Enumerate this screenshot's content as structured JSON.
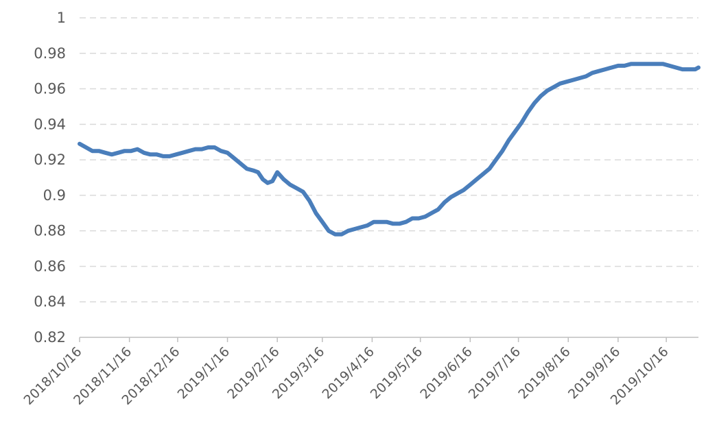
{
  "chart_data": {
    "type": "line",
    "title": "",
    "xlabel": "",
    "ylabel": "",
    "ylim": [
      0.82,
      1
    ],
    "y_ticks": [
      "0.82",
      "0.84",
      "0.86",
      "0.88",
      "0.9",
      "0.92",
      "0.94",
      "0.96",
      "0.98",
      "1"
    ],
    "x_ticks": [
      "2018/10/16",
      "2018/11/16",
      "2018/12/16",
      "2019/1/16",
      "2019/2/16",
      "2019/3/16",
      "2019/4/16",
      "2019/5/16",
      "2019/6/16",
      "2019/7/16",
      "2019/8/16",
      "2019/9/16",
      "2019/10/16"
    ],
    "x_range": [
      "2018/10/16",
      "2019/11/5"
    ],
    "grid": true,
    "legend": "none",
    "colors": {
      "line": "#4a7ebb",
      "grid": "#d9d9d9",
      "axis": "#bfbfbf",
      "text": "#595959"
    },
    "series": [
      {
        "x": [
          "2018/10/16",
          "2018/10/20",
          "2018/10/24",
          "2018/10/28",
          "2018/11/1",
          "2018/11/5",
          "2018/11/9",
          "2018/11/13",
          "2018/11/17",
          "2018/11/21",
          "2018/11/25",
          "2018/11/29",
          "2018/12/3",
          "2018/12/7",
          "2018/12/11",
          "2018/12/15",
          "2018/12/19",
          "2018/12/23",
          "2018/12/27",
          "2018/12/31",
          "2019/1/4",
          "2019/1/8",
          "2019/1/12",
          "2019/1/16",
          "2019/1/20",
          "2019/1/24",
          "2019/1/28",
          "2019/2/1",
          "2019/2/4",
          "2019/2/7",
          "2019/2/10",
          "2019/2/13",
          "2019/2/16",
          "2019/2/20",
          "2019/2/24",
          "2019/2/28",
          "2019/3/4",
          "2019/3/8",
          "2019/3/12",
          "2019/3/16",
          "2019/3/20",
          "2019/3/24",
          "2019/3/28",
          "2019/4/1",
          "2019/4/5",
          "2019/4/9",
          "2019/4/13",
          "2019/4/17",
          "2019/4/21",
          "2019/4/25",
          "2019/4/29",
          "2019/5/3",
          "2019/5/7",
          "2019/5/11",
          "2019/5/15",
          "2019/5/19",
          "2019/5/23",
          "2019/5/27",
          "2019/5/31",
          "2019/6/4",
          "2019/6/8",
          "2019/6/12",
          "2019/6/16",
          "2019/6/20",
          "2019/6/24",
          "2019/6/28",
          "2019/7/2",
          "2019/7/6",
          "2019/7/10",
          "2019/7/14",
          "2019/7/18",
          "2019/7/22",
          "2019/7/26",
          "2019/7/30",
          "2019/8/3",
          "2019/8/7",
          "2019/8/11",
          "2019/8/15",
          "2019/8/19",
          "2019/8/23",
          "2019/8/27",
          "2019/8/31",
          "2019/9/4",
          "2019/9/8",
          "2019/9/12",
          "2019/9/16",
          "2019/9/20",
          "2019/9/24",
          "2019/9/28",
          "2019/10/2",
          "2019/10/6",
          "2019/10/10",
          "2019/10/14",
          "2019/10/18",
          "2019/10/22",
          "2019/10/26",
          "2019/10/30",
          "2019/11/3",
          "2019/11/5"
        ],
        "values": [
          0.929,
          0.927,
          0.925,
          0.925,
          0.924,
          0.923,
          0.924,
          0.925,
          0.925,
          0.926,
          0.924,
          0.923,
          0.923,
          0.922,
          0.922,
          0.923,
          0.924,
          0.925,
          0.926,
          0.926,
          0.927,
          0.927,
          0.925,
          0.924,
          0.921,
          0.918,
          0.915,
          0.914,
          0.913,
          0.909,
          0.907,
          0.908,
          0.913,
          0.909,
          0.906,
          0.904,
          0.902,
          0.897,
          0.89,
          0.885,
          0.88,
          0.878,
          0.878,
          0.88,
          0.881,
          0.882,
          0.883,
          0.885,
          0.885,
          0.885,
          0.884,
          0.884,
          0.885,
          0.887,
          0.887,
          0.888,
          0.89,
          0.892,
          0.896,
          0.899,
          0.901,
          0.903,
          0.906,
          0.909,
          0.912,
          0.915,
          0.92,
          0.925,
          0.931,
          0.936,
          0.941,
          0.947,
          0.952,
          0.956,
          0.959,
          0.961,
          0.963,
          0.964,
          0.965,
          0.966,
          0.967,
          0.969,
          0.97,
          0.971,
          0.972,
          0.973,
          0.973,
          0.974,
          0.974,
          0.974,
          0.974,
          0.974,
          0.974,
          0.973,
          0.972,
          0.971,
          0.971,
          0.971,
          0.972
        ]
      }
    ]
  }
}
